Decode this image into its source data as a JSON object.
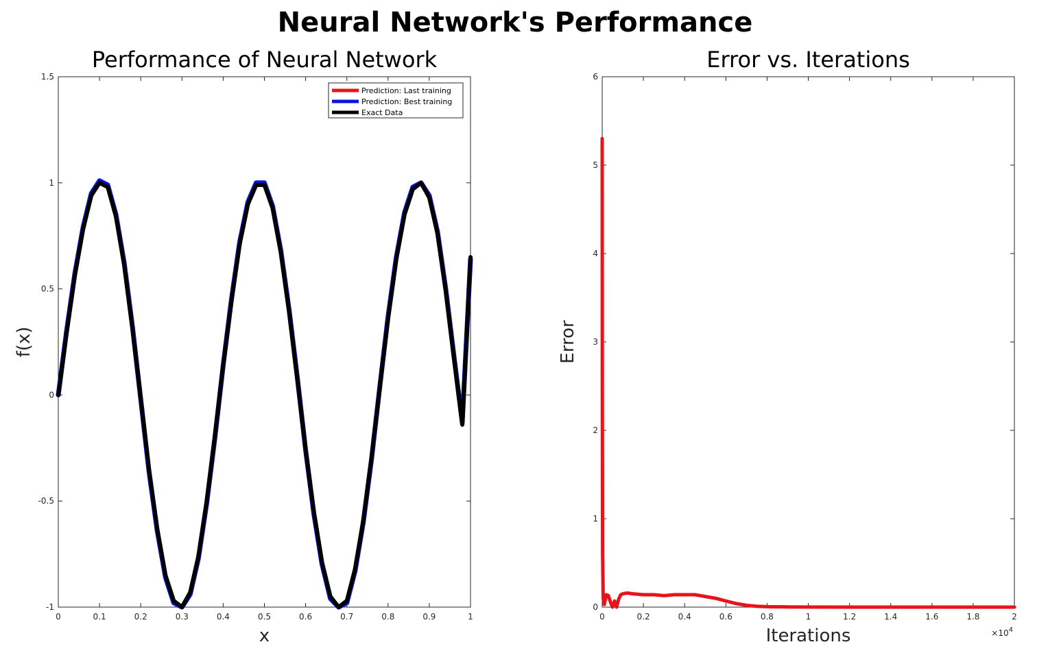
{
  "figure": {
    "title": "Neural Network's Performance"
  },
  "chart_data": [
    {
      "type": "line",
      "title": "Performance of Neural Network",
      "xlabel": "x",
      "ylabel": "f(x)",
      "xlim": [
        0,
        1
      ],
      "ylim": [
        -1,
        1.5
      ],
      "xticks": [
        0,
        0.1,
        0.2,
        0.3,
        0.4,
        0.5,
        0.6,
        0.7,
        0.8,
        0.9,
        1
      ],
      "xtick_labels": [
        "0",
        "0.1",
        "0.2",
        "0.3",
        "0.4",
        "0.5",
        "0.6",
        "0.7",
        "0.8",
        "0.9",
        "1"
      ],
      "yticks": [
        -1,
        -0.5,
        0,
        0.5,
        1,
        1.5
      ],
      "ytick_labels": [
        "-1",
        "-0.5",
        "0",
        "0.5",
        "1",
        "1.5"
      ],
      "grid": false,
      "legend_position": "top-right",
      "series": [
        {
          "name": "Prediction: Last training",
          "color": "#e8141c",
          "x": [
            0,
            0.02,
            0.04,
            0.06,
            0.08,
            0.1,
            0.12,
            0.14,
            0.16,
            0.18,
            0.2,
            0.22,
            0.24,
            0.26,
            0.28,
            0.3,
            0.32,
            0.34,
            0.36,
            0.38,
            0.4,
            0.42,
            0.44,
            0.46,
            0.48,
            0.5,
            0.52,
            0.54,
            0.56,
            0.58,
            0.6,
            0.62,
            0.64,
            0.66,
            0.68,
            0.7,
            0.72,
            0.74,
            0.76,
            0.78,
            0.8,
            0.82,
            0.84,
            0.86,
            0.88,
            0.9,
            0.92,
            0.94,
            0.96,
            0.98,
            1
          ],
          "y": [
            0,
            0.29,
            0.56,
            0.78,
            0.94,
            1.0,
            0.98,
            0.84,
            0.61,
            0.31,
            -0.02,
            -0.35,
            -0.63,
            -0.85,
            -0.97,
            -1.0,
            -0.93,
            -0.76,
            -0.5,
            -0.19,
            0.14,
            0.44,
            0.71,
            0.9,
            0.99,
            0.99,
            0.88,
            0.67,
            0.39,
            0.07,
            -0.26,
            -0.55,
            -0.79,
            -0.95,
            -1.0,
            -0.97,
            -0.82,
            -0.59,
            -0.29,
            0.04,
            0.36,
            0.64,
            0.85,
            0.97,
            1.0,
            0.93,
            0.76,
            0.49,
            0.17,
            -0.14,
            0.65
          ]
        },
        {
          "name": "Prediction: Best training",
          "color": "#0a14dc",
          "x": [
            0,
            0.02,
            0.04,
            0.06,
            0.08,
            0.1,
            0.12,
            0.14,
            0.16,
            0.18,
            0.2,
            0.22,
            0.24,
            0.26,
            0.28,
            0.3,
            0.32,
            0.34,
            0.36,
            0.38,
            0.4,
            0.42,
            0.44,
            0.46,
            0.48,
            0.5,
            0.52,
            0.54,
            0.56,
            0.58,
            0.6,
            0.62,
            0.64,
            0.66,
            0.68,
            0.7,
            0.72,
            0.74,
            0.76,
            0.78,
            0.8,
            0.82,
            0.84,
            0.86,
            0.88,
            0.9,
            0.92,
            0.94,
            0.96,
            0.98,
            1
          ],
          "y": [
            0,
            0.3,
            0.57,
            0.79,
            0.95,
            1.01,
            0.99,
            0.85,
            0.62,
            0.32,
            -0.02,
            -0.36,
            -0.64,
            -0.86,
            -0.98,
            -1.0,
            -0.94,
            -0.77,
            -0.51,
            -0.2,
            0.14,
            0.45,
            0.72,
            0.91,
            1.0,
            1.0,
            0.89,
            0.68,
            0.4,
            0.08,
            -0.26,
            -0.56,
            -0.8,
            -0.96,
            -1.0,
            -0.98,
            -0.83,
            -0.6,
            -0.3,
            0.04,
            0.37,
            0.65,
            0.86,
            0.98,
            1.0,
            0.94,
            0.77,
            0.5,
            0.18,
            -0.13,
            0.64
          ]
        },
        {
          "name": "Exact Data",
          "color": "#000000",
          "x": [
            0,
            0.02,
            0.04,
            0.06,
            0.08,
            0.1,
            0.12,
            0.14,
            0.16,
            0.18,
            0.2,
            0.22,
            0.24,
            0.26,
            0.28,
            0.3,
            0.32,
            0.34,
            0.36,
            0.38,
            0.4,
            0.42,
            0.44,
            0.46,
            0.48,
            0.5,
            0.52,
            0.54,
            0.56,
            0.58,
            0.6,
            0.62,
            0.64,
            0.66,
            0.68,
            0.7,
            0.72,
            0.74,
            0.76,
            0.78,
            0.8,
            0.82,
            0.84,
            0.86,
            0.88,
            0.9,
            0.92,
            0.94,
            0.96,
            0.98,
            1
          ],
          "y": [
            0,
            0.29,
            0.56,
            0.78,
            0.94,
            1.0,
            0.98,
            0.84,
            0.61,
            0.31,
            -0.02,
            -0.35,
            -0.63,
            -0.85,
            -0.97,
            -1.0,
            -0.93,
            -0.76,
            -0.5,
            -0.19,
            0.14,
            0.44,
            0.71,
            0.9,
            0.99,
            0.99,
            0.88,
            0.67,
            0.39,
            0.07,
            -0.26,
            -0.55,
            -0.79,
            -0.95,
            -1.0,
            -0.97,
            -0.82,
            -0.59,
            -0.29,
            0.04,
            0.36,
            0.64,
            0.85,
            0.97,
            1.0,
            0.93,
            0.76,
            0.49,
            0.17,
            -0.14,
            0.65
          ]
        }
      ]
    },
    {
      "type": "line",
      "title": "Error vs. Iterations",
      "xlabel": "Iterations",
      "ylabel": "Error",
      "xlim": [
        0,
        20000
      ],
      "ylim": [
        0,
        6
      ],
      "x_exponent_label": "×10",
      "x_exponent_power": "4",
      "xticks": [
        0,
        2000,
        4000,
        6000,
        8000,
        10000,
        12000,
        14000,
        16000,
        18000,
        20000
      ],
      "xtick_labels": [
        "0",
        "0.2",
        "0.4",
        "0.6",
        "0.8",
        "1",
        "1.2",
        "1.4",
        "1.6",
        "1.8",
        "2"
      ],
      "yticks": [
        0,
        1,
        2,
        3,
        4,
        5,
        6
      ],
      "ytick_labels": [
        "0",
        "1",
        "2",
        "3",
        "4",
        "5",
        "6"
      ],
      "grid": false,
      "series": [
        {
          "color": "#e8141c",
          "x": [
            0,
            5,
            20,
            50,
            100,
            200,
            300,
            400,
            500,
            600,
            700,
            800,
            900,
            1000,
            1200,
            1500,
            2000,
            2500,
            3000,
            3500,
            4000,
            4500,
            5000,
            5500,
            6000,
            6500,
            7000,
            7500,
            8000,
            9000,
            10000,
            12000,
            14000,
            16000,
            18000,
            20000
          ],
          "y": [
            5.3,
            2.5,
            0.6,
            0.1,
            0.03,
            0.14,
            0.13,
            0.06,
            0.0,
            0.07,
            0.0,
            0.09,
            0.14,
            0.15,
            0.16,
            0.15,
            0.14,
            0.14,
            0.13,
            0.14,
            0.14,
            0.14,
            0.12,
            0.1,
            0.07,
            0.04,
            0.02,
            0.01,
            0.005,
            0.002,
            0.001,
            0.0,
            0.0,
            0.0,
            0.0,
            0.0
          ]
        }
      ]
    }
  ]
}
